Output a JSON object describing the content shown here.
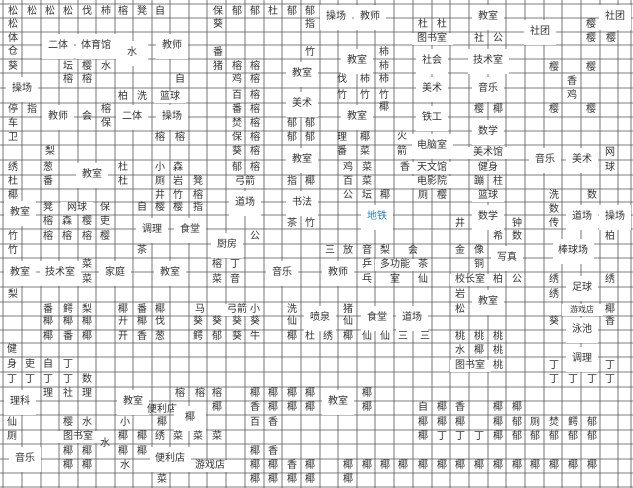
{
  "colors": {
    "grid_line": "#555555",
    "text": "#333333",
    "subway": "#2a7fc0"
  },
  "labels": [
    "松",
    "松",
    "松",
    "松",
    "伐",
    "柿",
    "榕",
    "凳",
    "自",
    "保",
    "郁",
    "郁",
    "杜",
    "郁",
    "郁",
    "操场",
    "教师",
    "教室",
    "社团",
    "松",
    "葵",
    "指",
    "杜",
    "杜",
    "社团",
    "樱",
    "体",
    "仓",
    "二体",
    "体育馆",
    "水",
    "教师",
    "图书室",
    "社",
    "公",
    "樱",
    "樱",
    "番",
    "竹",
    "教室",
    "柿",
    "社会",
    "技术室",
    "樱",
    "樱",
    "葵",
    "坛",
    "樱",
    "水",
    "猪",
    "榕",
    "榕",
    "教室",
    "柿",
    "操场",
    "榕",
    "榕",
    "自",
    "鸡",
    "榕",
    "伐",
    "柿",
    "柿",
    "美术",
    "音乐",
    "香",
    "鸡",
    "柏",
    "洗",
    "篮球",
    "百",
    "榕",
    "美术",
    "竹",
    "竹",
    "竹",
    "停",
    "指",
    "教师",
    "会",
    "榕",
    "保",
    "二体",
    "操场",
    "番",
    "榕",
    "教室",
    "椰",
    "铁工",
    "樱",
    "椰",
    "樱",
    "樱",
    "车",
    "焚",
    "榕",
    "郁",
    "郁",
    "数学",
    "卫",
    "榕",
    "榕",
    "保",
    "榕",
    "郁",
    "郁",
    "理",
    "椰",
    "火",
    "电脑室",
    "梨",
    "葵",
    "榕",
    "教室",
    "番",
    "菜",
    "箭",
    "美术馆",
    "音乐",
    "美术",
    "网",
    "绣",
    "葱",
    "教室",
    "杜",
    "小",
    "森",
    "郁",
    "榕",
    "鸡",
    "菜",
    "香",
    "天文馆",
    "健身",
    "球",
    "杜",
    "番",
    "杜",
    "厕",
    "岩",
    "凳",
    "弓箭",
    "指",
    "椰",
    "百",
    "菜",
    "电影院",
    "蹦",
    "柱",
    "椰",
    "井",
    "竹",
    "榕",
    "道场",
    "书法",
    "公",
    "坛",
    "椰",
    "厕",
    "樱",
    "篮球",
    "洗",
    "数",
    "教室",
    "凳",
    "网球",
    "保",
    "自",
    "樱",
    "樱",
    "指",
    "地铁",
    "数学",
    "数",
    "道场",
    "操场",
    "榕",
    "森",
    "樱",
    "吏",
    "调理",
    "食堂",
    "茶",
    "竹",
    "井",
    "钟",
    "传",
    "竹",
    "榕",
    "榕",
    "榕",
    "樱",
    "厨房",
    "公",
    "希",
    "数",
    "柏",
    "竹",
    "茶",
    "三",
    "放",
    "音",
    "梨",
    "会",
    "金",
    "像",
    "写真",
    "棒球场",
    "教室",
    "技术室",
    "菜",
    "菜",
    "家庭",
    "教室",
    "榕",
    "丁",
    "菜",
    "音",
    "音乐",
    "教师",
    "乒",
    "乓",
    "多功能",
    "室",
    "茶",
    "铜",
    "仙",
    "校长室",
    "柏",
    "公",
    "绣",
    "足球",
    "绣",
    "梨",
    "岩",
    "绣",
    "教室",
    "番",
    "鳄",
    "梨",
    "椰",
    "番",
    "椰",
    "马",
    "弓箭",
    "小",
    "洗",
    "喷泉",
    "猪",
    "食堂",
    "道场",
    "松",
    "游戏店",
    "椰",
    "椰",
    "椰",
    "椰",
    "开",
    "椰",
    "伐",
    "葵",
    "葵",
    "葵",
    "葵",
    "仙",
    "仙",
    "葵",
    "泳池",
    "香",
    "椰",
    "番",
    "椰",
    "开",
    "香",
    "葱",
    "鳄",
    "郁",
    "葵",
    "牛",
    "椰",
    "杜",
    "绣",
    "椰",
    "仙",
    "仙",
    "三",
    "三",
    "桃",
    "桃",
    "桃",
    "健",
    "水",
    "椰",
    "桃",
    "调理",
    "身",
    "吏",
    "自",
    "丁",
    "图书室",
    "桃",
    "丁",
    "丁",
    "丁",
    "丁",
    "丁",
    "丁",
    "数",
    "丁",
    "丁",
    "丁",
    "丁",
    "理科",
    "理",
    "社",
    "理",
    "教室",
    "榕",
    "榕",
    "榕",
    "椰",
    "椰",
    "椰",
    "椰",
    "教室",
    "椰",
    "椰",
    "香",
    "椰",
    "椰",
    "椰",
    "椰",
    "自",
    "便利店",
    "椰",
    "椰",
    "香",
    "椰",
    "椰",
    "百",
    "仙",
    "樱",
    "水",
    "小",
    "椰",
    "香",
    "椰",
    "椰",
    "椰",
    "椰",
    "郁",
    "厕",
    "焚",
    "鳄",
    "郁",
    "厕",
    "图书室",
    "水",
    "椰",
    "椰",
    "绣",
    "菜",
    "菜",
    "菜",
    "椰",
    "丁",
    "丁",
    "丁",
    "椰",
    "郁",
    "郁",
    "郁",
    "郁",
    "郁",
    "音乐",
    "椰",
    "椰",
    "椰",
    "椰",
    "便利店",
    "椰",
    "香",
    "椰",
    "椰",
    "水",
    "游戏店",
    "椰",
    "椰",
    "香",
    "椰",
    "椰",
    "椰",
    "椰",
    "椰",
    "椰",
    "椰",
    "椰",
    "椰",
    "椰",
    "椰",
    "椰",
    "椰",
    "椰",
    "椰",
    "菜",
    "椰",
    "椰",
    "椰",
    "椰",
    "椰"
  ]
}
